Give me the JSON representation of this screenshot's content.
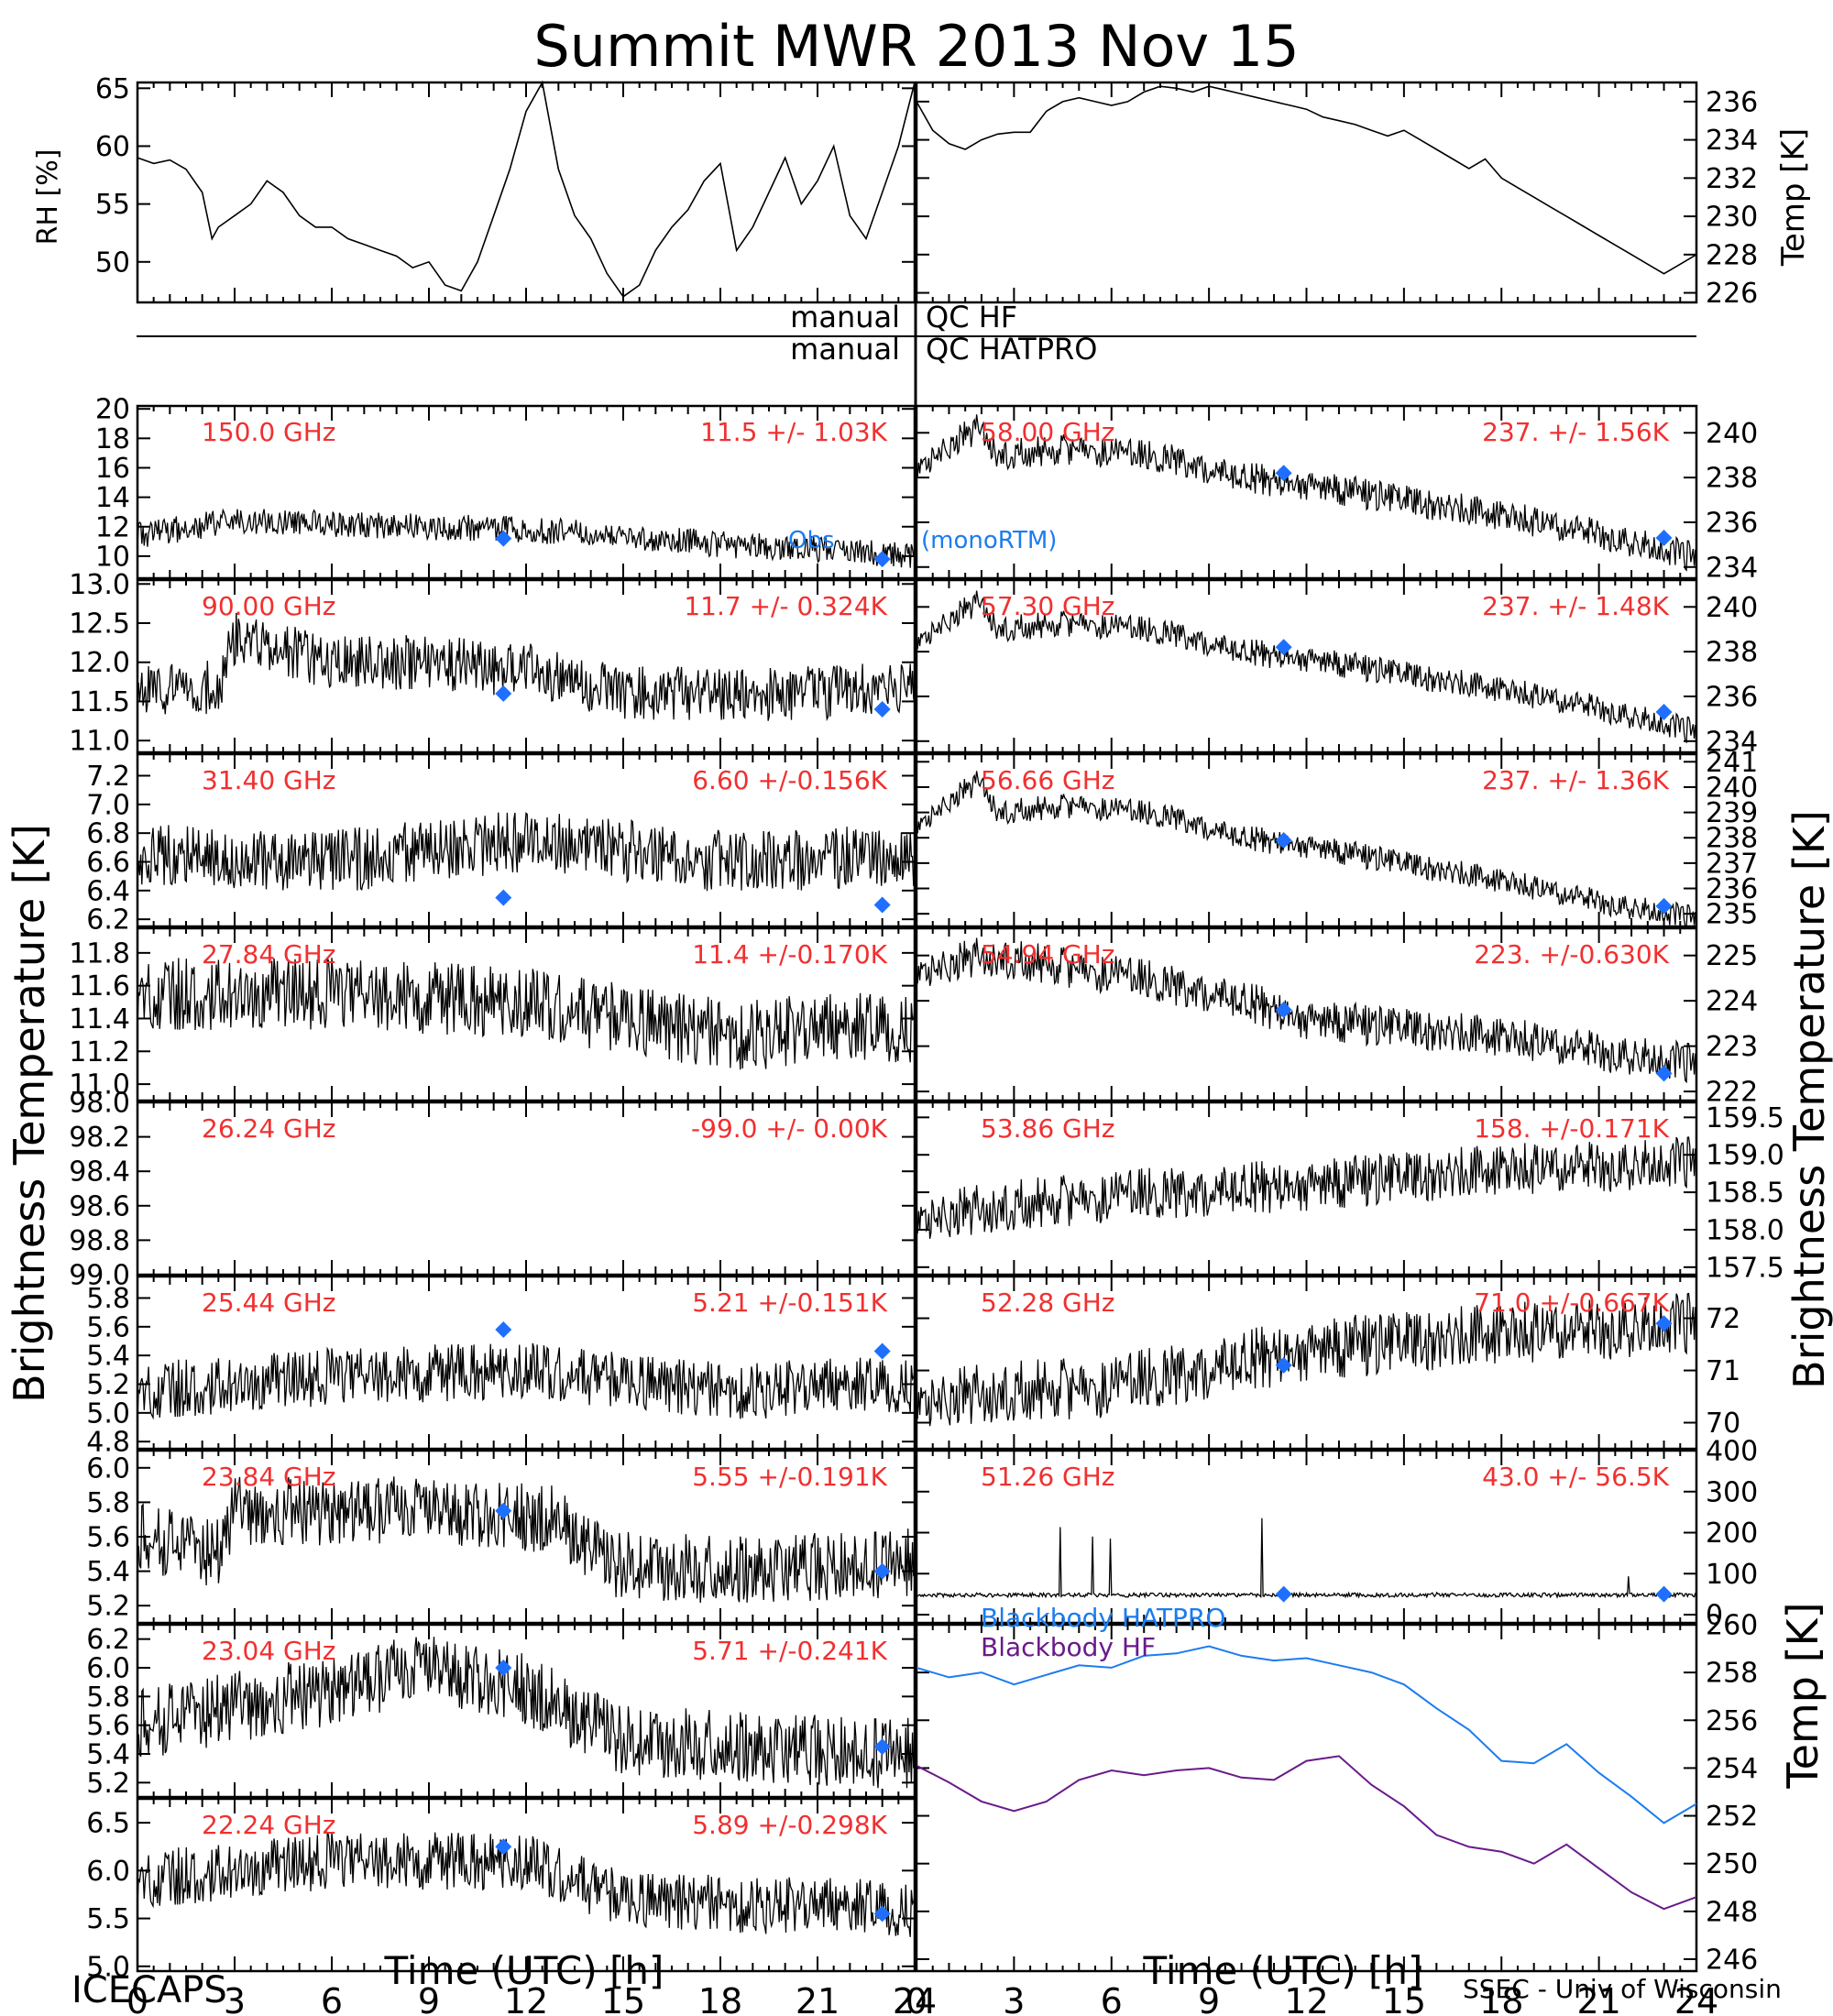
{
  "title": "Summit MWR 2013 Nov 15",
  "footer": {
    "left": "ICECAPS",
    "right": "SSEC - Univ of Wisconsin"
  },
  "qc": {
    "label_left_1": "manual",
    "label_right_1": "QC HF",
    "label_left_2": "manual",
    "label_right_2": "QC HATPRO"
  },
  "axis_titles": {
    "left_bt": "Brightness Temperature [K]",
    "right_bt": "Brightness Temperature [K]",
    "rh": "RH [%]",
    "temp_top": "Temp [K]",
    "temp_bb": "Temp [K]",
    "x_left": "Time (UTC) [h]",
    "x_right": "Time (UTC) [h]"
  },
  "legend": {
    "obs": "Obs",
    "model": "(monoRTM)",
    "bb_hatpro": "Blackbody HATPRO",
    "bb_hf": "Blackbody HF"
  },
  "colors": {
    "label_red": "#f03030",
    "marker_blue": "#1f6fff",
    "bb_hatpro": "#1c7cf0",
    "bb_hf": "#6a1a8a",
    "trace": "#000000"
  },
  "chart_data": [
    {
      "id": "rh",
      "type": "line",
      "ylabel": "RH [%]",
      "ylim": [
        46.5,
        65.5
      ],
      "yticks": [
        50,
        55,
        60,
        65
      ],
      "xlim": [
        0,
        24
      ],
      "x": [
        0,
        0.5,
        1,
        1.5,
        2,
        2.3,
        2.5,
        3,
        3.5,
        4,
        4.5,
        5,
        5.5,
        6,
        6.5,
        7,
        7.5,
        8,
        8.5,
        9,
        9.5,
        10,
        10.5,
        11,
        11.5,
        12,
        12.5,
        13,
        13.5,
        14,
        14.5,
        15,
        15.5,
        16,
        16.5,
        17,
        17.5,
        18,
        18.5,
        19,
        19.5,
        20,
        20.5,
        21,
        21.5,
        22,
        22.5,
        23,
        23.5,
        24
      ],
      "y": [
        59,
        58.5,
        58.8,
        58,
        56,
        52,
        53,
        54,
        55,
        57,
        56,
        54,
        53,
        53,
        52,
        51.5,
        51,
        50.5,
        49.5,
        50,
        48,
        47.5,
        50,
        54,
        58,
        63,
        65.5,
        58,
        54,
        52,
        49,
        47,
        48,
        51,
        53,
        54.5,
        57,
        58.5,
        51,
        53,
        56,
        59,
        55,
        57,
        60,
        54,
        52,
        56,
        60,
        65.5
      ]
    },
    {
      "id": "temp_top",
      "type": "line",
      "ylabel": "Temp [K]",
      "ylim": [
        225.5,
        237
      ],
      "yticks": [
        226,
        228,
        230,
        232,
        234,
        236
      ],
      "xlim": [
        0,
        24
      ],
      "x": [
        0,
        0.5,
        1,
        1.5,
        2,
        2.5,
        3,
        3.5,
        4,
        4.5,
        5,
        5.5,
        6,
        6.5,
        7,
        7.5,
        8,
        8.5,
        9,
        9.5,
        10,
        10.5,
        11,
        11.5,
        12,
        12.5,
        13,
        13.5,
        14,
        14.5,
        15,
        15.5,
        16,
        16.5,
        17,
        17.5,
        18,
        18.5,
        19,
        19.5,
        20,
        20.5,
        21,
        21.5,
        22,
        22.5,
        23,
        23.5,
        24
      ],
      "y": [
        236,
        234.5,
        233.8,
        233.5,
        234,
        234.3,
        234.4,
        234.4,
        235.5,
        236,
        236.2,
        236,
        235.8,
        236,
        236.5,
        236.8,
        236.7,
        236.5,
        236.8,
        236.6,
        236.4,
        236.2,
        236,
        235.8,
        235.6,
        235.2,
        235,
        234.8,
        234.5,
        234.2,
        234.5,
        234,
        233.5,
        233,
        232.5,
        233,
        232,
        231.5,
        231,
        230.5,
        230,
        229.5,
        229,
        228.5,
        228,
        227.5,
        227,
        227.5,
        228
      ]
    },
    {
      "id": "ch150",
      "side": "left",
      "label": "150.0 GHz",
      "stat": "11.5 +/- 1.03K",
      "ylim": [
        8.5,
        20.2
      ],
      "yticks": [
        10,
        12,
        14,
        16,
        18,
        20
      ],
      "base": [
        [
          0,
          11.4
        ],
        [
          3,
          12.4
        ],
        [
          6,
          12.2
        ],
        [
          9,
          12
        ],
        [
          12,
          11.8
        ],
        [
          15,
          11.4
        ],
        [
          18,
          10.8
        ],
        [
          21,
          10.5
        ],
        [
          24,
          10
        ]
      ],
      "noise": 0.9,
      "model": [
        [
          11.3,
          11.2
        ],
        [
          23.0,
          9.8
        ]
      ]
    },
    {
      "id": "ch90",
      "side": "left",
      "label": "90.00 GHz",
      "stat": "11.7 +/- 0.324K",
      "ylim": [
        10.85,
        13.05
      ],
      "yticks": [
        11.0,
        11.5,
        12.0,
        12.5,
        13.0
      ],
      "base": [
        [
          0,
          11.6
        ],
        [
          2.5,
          11.7
        ],
        [
          3,
          12.3
        ],
        [
          6,
          12
        ],
        [
          9,
          12
        ],
        [
          12,
          11.9
        ],
        [
          15,
          11.6
        ],
        [
          18,
          11.6
        ],
        [
          21,
          11.6
        ],
        [
          24,
          11.7
        ]
      ],
      "noise": 0.35,
      "model": [
        [
          11.3,
          11.6
        ],
        [
          23.0,
          11.4
        ]
      ]
    },
    {
      "id": "ch31",
      "side": "left",
      "label": "31.40 GHz",
      "stat": "6.60 +/-0.156K",
      "ylim": [
        6.15,
        7.35
      ],
      "yticks": [
        6.2,
        6.4,
        6.6,
        6.8,
        7.0,
        7.2
      ],
      "base": [
        [
          0,
          6.65
        ],
        [
          6,
          6.6
        ],
        [
          12,
          6.75
        ],
        [
          18,
          6.6
        ],
        [
          24,
          6.65
        ]
      ],
      "noise": 0.22,
      "model": [
        [
          11.3,
          6.35
        ],
        [
          23.0,
          6.3
        ]
      ]
    },
    {
      "id": "ch27",
      "side": "left",
      "label": "27.84 GHz",
      "stat": "11.4 +/-0.170K",
      "ylim": [
        10.9,
        11.95
      ],
      "yticks": [
        11.0,
        11.2,
        11.4,
        11.6,
        11.8
      ],
      "base": [
        [
          0,
          11.55
        ],
        [
          6,
          11.55
        ],
        [
          12,
          11.5
        ],
        [
          18,
          11.3
        ],
        [
          24,
          11.35
        ]
      ],
      "noise": 0.22,
      "model": []
    },
    {
      "id": "ch26",
      "side": "left",
      "label": "26.24 GHz",
      "stat": "-99.0 +/- 0.00K",
      "ylim": [
        99.0,
        98.0
      ],
      "yticks": [
        98.0,
        98.2,
        98.4,
        98.6,
        98.8,
        99.0
      ],
      "base": [],
      "noise": 0,
      "model": []
    },
    {
      "id": "ch25",
      "side": "left",
      "label": "25.44 GHz",
      "stat": "5.21 +/-0.151K",
      "ylim": [
        4.75,
        5.95
      ],
      "yticks": [
        4.8,
        5.0,
        5.2,
        5.4,
        5.6,
        5.8
      ],
      "base": [
        [
          0,
          5.15
        ],
        [
          6,
          5.25
        ],
        [
          12,
          5.3
        ],
        [
          18,
          5.15
        ],
        [
          24,
          5.2
        ]
      ],
      "noise": 0.2,
      "model": [
        [
          11.3,
          5.58
        ],
        [
          23.0,
          5.43
        ]
      ]
    },
    {
      "id": "ch23_84",
      "side": "left",
      "label": "23.84 GHz",
      "stat": "5.55 +/-0.191K",
      "ylim": [
        5.1,
        6.1
      ],
      "yticks": [
        5.2,
        5.4,
        5.6,
        5.8,
        6.0
      ],
      "base": [
        [
          0,
          5.6
        ],
        [
          2.5,
          5.5
        ],
        [
          3,
          5.75
        ],
        [
          9,
          5.75
        ],
        [
          13,
          5.7
        ],
        [
          14.5,
          5.45
        ],
        [
          18,
          5.4
        ],
        [
          24,
          5.45
        ]
      ],
      "noise": 0.2,
      "model": [
        [
          11.3,
          5.75
        ],
        [
          23.0,
          5.4
        ]
      ]
    },
    {
      "id": "ch23_04",
      "side": "left",
      "label": "23.04 GHz",
      "stat": "5.71 +/-0.241K",
      "ylim": [
        5.1,
        6.3
      ],
      "yticks": [
        5.2,
        5.4,
        5.6,
        5.8,
        6.0,
        6.2
      ],
      "base": [
        [
          0,
          5.6
        ],
        [
          6,
          5.85
        ],
        [
          9,
          6.0
        ],
        [
          12,
          5.85
        ],
        [
          15,
          5.5
        ],
        [
          18,
          5.45
        ],
        [
          24,
          5.4
        ]
      ],
      "noise": 0.25,
      "model": [
        [
          11.3,
          6.0
        ],
        [
          23.0,
          5.45
        ]
      ]
    },
    {
      "id": "ch22",
      "side": "left",
      "label": "22.24 GHz",
      "stat": "5.89 +/-0.298K",
      "ylim": [
        4.95,
        6.75
      ],
      "yticks": [
        5.0,
        5.5,
        6.0,
        6.5
      ],
      "base": [
        [
          0,
          5.9
        ],
        [
          6,
          6.1
        ],
        [
          12,
          6.1
        ],
        [
          15,
          5.7
        ],
        [
          18,
          5.65
        ],
        [
          24,
          5.6
        ]
      ],
      "noise": 0.3,
      "model": [
        [
          11.3,
          6.25
        ],
        [
          23.0,
          5.55
        ]
      ]
    },
    {
      "id": "ch58",
      "side": "right",
      "label": "58.00 GHz",
      "stat": "237. +/- 1.56K",
      "ylim": [
        233.5,
        241.2
      ],
      "yticks": [
        234,
        236,
        238,
        240
      ],
      "base": [
        [
          0,
          238.5
        ],
        [
          1,
          239.5
        ],
        [
          2,
          240.3
        ],
        [
          2.5,
          239
        ],
        [
          5,
          239.3
        ],
        [
          8,
          238.8
        ],
        [
          10,
          238
        ],
        [
          12,
          237.7
        ],
        [
          15,
          237
        ],
        [
          18,
          236.3
        ],
        [
          21,
          235.5
        ],
        [
          24,
          234.4
        ]
      ],
      "noise": 0.7,
      "model": [
        [
          11.3,
          238.2
        ],
        [
          23.0,
          235.3
        ]
      ]
    },
    {
      "id": "ch57",
      "side": "right",
      "label": "57.30 GHz",
      "stat": "237. +/- 1.48K",
      "ylim": [
        233.5,
        241.2
      ],
      "yticks": [
        234,
        236,
        238,
        240
      ],
      "base": [
        [
          0,
          238.5
        ],
        [
          1,
          239.5
        ],
        [
          2,
          240.3
        ],
        [
          2.5,
          239
        ],
        [
          5,
          239.3
        ],
        [
          8,
          238.8
        ],
        [
          10,
          238
        ],
        [
          12,
          237.7
        ],
        [
          15,
          237
        ],
        [
          18,
          236.3
        ],
        [
          21,
          235.5
        ],
        [
          24,
          234.4
        ]
      ],
      "noise": 0.6,
      "model": [
        [
          11.3,
          238.2
        ],
        [
          23.0,
          235.3
        ]
      ]
    },
    {
      "id": "ch56",
      "side": "right",
      "label": "56.66 GHz",
      "stat": "237. +/- 1.36K",
      "ylim": [
        234.5,
        241.3
      ],
      "yticks": [
        235,
        236,
        237,
        238,
        239,
        240,
        241
      ],
      "base": [
        [
          0,
          238.5
        ],
        [
          1,
          239.5
        ],
        [
          2,
          240.3
        ],
        [
          2.5,
          239
        ],
        [
          5,
          239.3
        ],
        [
          8,
          238.8
        ],
        [
          10,
          238
        ],
        [
          12,
          237.7
        ],
        [
          15,
          237
        ],
        [
          18,
          236.3
        ],
        [
          21,
          235.5
        ],
        [
          24,
          234.8
        ]
      ],
      "noise": 0.5,
      "model": [
        [
          11.3,
          237.9
        ],
        [
          23.0,
          235.3
        ]
      ]
    },
    {
      "id": "ch54",
      "side": "right",
      "label": "54.94 GHz",
      "stat": "223. +/-0.630K",
      "ylim": [
        221.8,
        225.6
      ],
      "yticks": [
        222,
        223,
        224,
        225
      ],
      "base": [
        [
          0,
          224.7
        ],
        [
          2,
          225
        ],
        [
          6,
          224.6
        ],
        [
          9,
          224.2
        ],
        [
          12,
          223.6
        ],
        [
          15,
          223.4
        ],
        [
          18,
          223.2
        ],
        [
          21,
          222.9
        ],
        [
          24,
          222.6
        ]
      ],
      "noise": 0.45,
      "model": [
        [
          11.3,
          223.8
        ],
        [
          23.0,
          222.4
        ]
      ]
    },
    {
      "id": "ch53",
      "side": "right",
      "label": "53.86 GHz",
      "stat": "158. +/-0.171K",
      "ylim": [
        157.4,
        159.7
      ],
      "yticks": [
        157.5,
        158.0,
        158.5,
        159.0,
        159.5
      ],
      "base": [
        [
          0,
          158.2
        ],
        [
          6,
          158.45
        ],
        [
          12,
          158.6
        ],
        [
          18,
          158.8
        ],
        [
          24,
          158.9
        ]
      ],
      "noise": 0.35,
      "model": []
    },
    {
      "id": "ch52",
      "side": "right",
      "label": "52.28 GHz",
      "stat": "71.0 +/-0.667K",
      "ylim": [
        69.5,
        72.8
      ],
      "yticks": [
        70,
        71,
        72
      ],
      "base": [
        [
          0,
          70.5
        ],
        [
          6,
          70.7
        ],
        [
          12,
          71.4
        ],
        [
          18,
          71.7
        ],
        [
          24,
          71.9
        ]
      ],
      "noise": 0.6,
      "model": [
        [
          11.3,
          71.1
        ],
        [
          23.0,
          71.9
        ]
      ]
    },
    {
      "id": "ch51",
      "side": "right",
      "label": "51.26 GHz",
      "stat": "43.0 +/- 56.5K",
      "ylim": [
        -20,
        400
      ],
      "yticks": [
        0,
        100,
        200,
        300,
        400
      ],
      "base": [
        [
          0,
          48
        ],
        [
          24,
          48
        ]
      ],
      "noise": 5,
      "model": [
        [
          11.3,
          50
        ],
        [
          23.0,
          50
        ]
      ]
    },
    {
      "id": "bb",
      "type": "line",
      "ylabel": "Temp [K]",
      "ylim": [
        245.5,
        260
      ],
      "yticks": [
        246,
        248,
        250,
        252,
        254,
        256,
        258,
        260
      ],
      "xlim": [
        0,
        24
      ],
      "series": [
        {
          "name": "Blackbody HATPRO",
          "x": [
            0,
            1,
            2,
            3,
            4,
            5,
            6,
            7,
            8,
            9,
            10,
            11,
            12,
            13,
            14,
            15,
            16,
            17,
            18,
            19,
            20,
            21,
            22,
            23,
            24
          ],
          "y": [
            258.2,
            257.8,
            258,
            257.5,
            257.9,
            258.3,
            258.2,
            258.7,
            258.8,
            259.1,
            258.7,
            258.5,
            258.6,
            258.3,
            258,
            257.5,
            256.5,
            255.6,
            254.3,
            254.2,
            255,
            253.8,
            252.8,
            251.7,
            252.5
          ]
        },
        {
          "name": "Blackbody HF",
          "x": [
            0,
            1,
            2,
            3,
            4,
            5,
            6,
            7,
            8,
            9,
            10,
            11,
            12,
            13,
            14,
            15,
            16,
            17,
            18,
            19,
            20,
            21,
            22,
            23,
            24
          ],
          "y": [
            254.1,
            253.4,
            252.6,
            252.2,
            252.6,
            253.5,
            253.9,
            253.7,
            253.9,
            254,
            253.6,
            253.5,
            254.3,
            254.5,
            253.3,
            252.4,
            251.2,
            250.7,
            250.5,
            250,
            250.8,
            249.8,
            248.8,
            248.1,
            248.6
          ]
        }
      ]
    }
  ],
  "xticks": [
    "0",
    "3",
    "6",
    "9",
    "12",
    "15",
    "18",
    "21",
    "24"
  ]
}
